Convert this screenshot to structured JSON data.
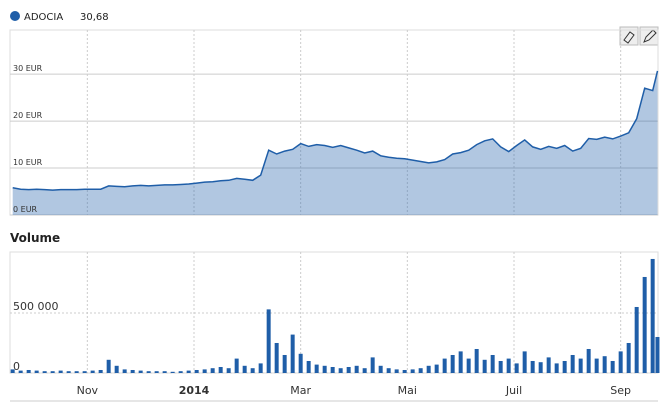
{
  "chart_data": [
    {
      "type": "area",
      "x": [
        9.6,
        9.75,
        9.9,
        10.05,
        10.2,
        10.35,
        10.5,
        10.65,
        10.8,
        10.95,
        11.1,
        11.25,
        11.4,
        11.55,
        11.7,
        11.85,
        12.0,
        12.15,
        12.3,
        12.45,
        12.6,
        12.75,
        12.9,
        13.05,
        13.2,
        13.35,
        13.5,
        13.65,
        13.8,
        13.95,
        14.1,
        14.25,
        14.4,
        14.55,
        14.7,
        14.85,
        15.0,
        15.15,
        15.3,
        15.45,
        15.6,
        15.75,
        15.9,
        16.05,
        16.2,
        16.35,
        16.5,
        16.65,
        16.8,
        16.95,
        17.1,
        17.25,
        17.4,
        17.55,
        17.7,
        17.85,
        18.0,
        18.15,
        18.3,
        18.45,
        18.6,
        18.75,
        18.9,
        19.05,
        19.2,
        19.35,
        19.5,
        19.65,
        19.8,
        19.95,
        20.1,
        20.25,
        20.4,
        20.55,
        20.7,
        20.85,
        21.0,
        21.15,
        21.3,
        21.45,
        21.6,
        21.69
      ],
      "series": [
        {
          "name": "ADOCIA",
          "color": "#1f5ea8",
          "values": [
            5.8,
            5.5,
            5.4,
            5.5,
            5.4,
            5.3,
            5.4,
            5.4,
            5.4,
            5.5,
            5.5,
            5.5,
            6.2,
            6.1,
            6.0,
            6.2,
            6.3,
            6.2,
            6.3,
            6.4,
            6.4,
            6.5,
            6.6,
            6.8,
            7.0,
            7.1,
            7.3,
            7.4,
            7.8,
            7.6,
            7.4,
            8.5,
            13.8,
            13.0,
            13.6,
            14.0,
            15.2,
            14.6,
            15.0,
            14.8,
            14.4,
            14.8,
            14.3,
            13.8,
            13.2,
            13.6,
            12.6,
            12.3,
            12.1,
            12.0,
            11.7,
            11.4,
            11.1,
            11.3,
            11.8,
            13.0,
            13.3,
            13.8,
            15.0,
            15.8,
            16.2,
            14.5,
            13.5,
            14.8,
            16.0,
            14.5,
            14.0,
            14.6,
            14.2,
            14.8,
            13.6,
            14.2,
            16.3,
            16.1,
            16.6,
            16.2,
            16.8,
            17.5,
            20.5,
            27.0,
            26.5,
            30.68
          ],
          "value_labels": [
            null,
            null,
            null,
            null,
            null,
            null,
            null,
            null,
            null,
            null,
            null,
            null,
            null,
            null,
            null,
            null,
            null,
            null,
            null,
            null,
            null,
            null,
            null,
            null,
            null,
            null,
            null,
            null,
            null,
            null,
            null,
            null,
            null,
            null,
            null,
            null,
            null,
            null,
            null,
            null,
            null,
            null,
            null,
            null,
            null,
            null,
            null,
            null,
            null,
            null,
            null,
            null,
            null,
            null,
            null,
            null,
            null,
            null,
            null,
            null,
            null,
            null,
            null,
            null,
            null,
            null,
            null,
            null,
            null,
            null,
            null,
            null,
            null,
            null,
            null,
            null,
            null,
            null,
            null,
            null,
            null,
            "30,68"
          ]
        }
      ],
      "xlim": [
        9.55,
        21.7
      ],
      "xticks": [
        11,
        13,
        15,
        17,
        19,
        21
      ],
      "ylim": [
        0,
        39.4
      ],
      "yticks": [
        {
          "value": 0,
          "label": "0 EUR"
        },
        {
          "value": 10,
          "label": "10 EUR"
        },
        {
          "value": 20,
          "label": "20 EUR"
        },
        {
          "value": 30,
          "label": "30 EUR"
        }
      ],
      "grid": true
    },
    {
      "type": "bar",
      "title": "Volume",
      "x": [
        9.6,
        9.75,
        9.9,
        10.05,
        10.2,
        10.35,
        10.5,
        10.65,
        10.8,
        10.95,
        11.1,
        11.25,
        11.4,
        11.55,
        11.7,
        11.85,
        12.0,
        12.15,
        12.3,
        12.45,
        12.6,
        12.75,
        12.9,
        13.05,
        13.2,
        13.35,
        13.5,
        13.65,
        13.8,
        13.95,
        14.1,
        14.25,
        14.4,
        14.55,
        14.7,
        14.85,
        15.0,
        15.15,
        15.3,
        15.45,
        15.6,
        15.75,
        15.9,
        16.05,
        16.2,
        16.35,
        16.5,
        16.65,
        16.8,
        16.95,
        17.1,
        17.25,
        17.4,
        17.55,
        17.7,
        17.85,
        18.0,
        18.15,
        18.3,
        18.45,
        18.6,
        18.75,
        18.9,
        19.05,
        19.2,
        19.35,
        19.5,
        19.65,
        19.8,
        19.95,
        20.1,
        20.25,
        20.4,
        20.55,
        20.7,
        20.85,
        21.0,
        21.15,
        21.3,
        21.45,
        21.6,
        21.69
      ],
      "values": [
        30000,
        20000,
        25000,
        20000,
        15000,
        15000,
        20000,
        15000,
        15000,
        15000,
        20000,
        25000,
        110000,
        60000,
        30000,
        25000,
        20000,
        15000,
        15000,
        15000,
        10000,
        15000,
        20000,
        25000,
        30000,
        40000,
        50000,
        40000,
        120000,
        60000,
        40000,
        80000,
        530000,
        250000,
        150000,
        320000,
        160000,
        100000,
        70000,
        60000,
        50000,
        40000,
        50000,
        60000,
        40000,
        130000,
        60000,
        40000,
        30000,
        25000,
        30000,
        40000,
        60000,
        70000,
        120000,
        150000,
        180000,
        120000,
        200000,
        110000,
        150000,
        100000,
        120000,
        80000,
        180000,
        100000,
        90000,
        130000,
        80000,
        100000,
        150000,
        120000,
        200000,
        120000,
        140000,
        100000,
        180000,
        250000,
        550000,
        800000,
        950000,
        300000
      ],
      "color": "#1f5ea8",
      "xlim": [
        9.55,
        21.7
      ],
      "xticks": [
        {
          "value": 11,
          "label": "Nov"
        },
        {
          "value": 13,
          "label": "2014"
        },
        {
          "value": 15,
          "label": "Mar"
        },
        {
          "value": 17,
          "label": "Mai"
        },
        {
          "value": 19,
          "label": "Juil"
        },
        {
          "value": 21,
          "label": "Sep"
        }
      ],
      "ylim": [
        0,
        1008000
      ],
      "yticks": [
        0,
        {
          "value": 500000,
          "label": "500 000"
        }
      ],
      "grid": true
    }
  ]
}
